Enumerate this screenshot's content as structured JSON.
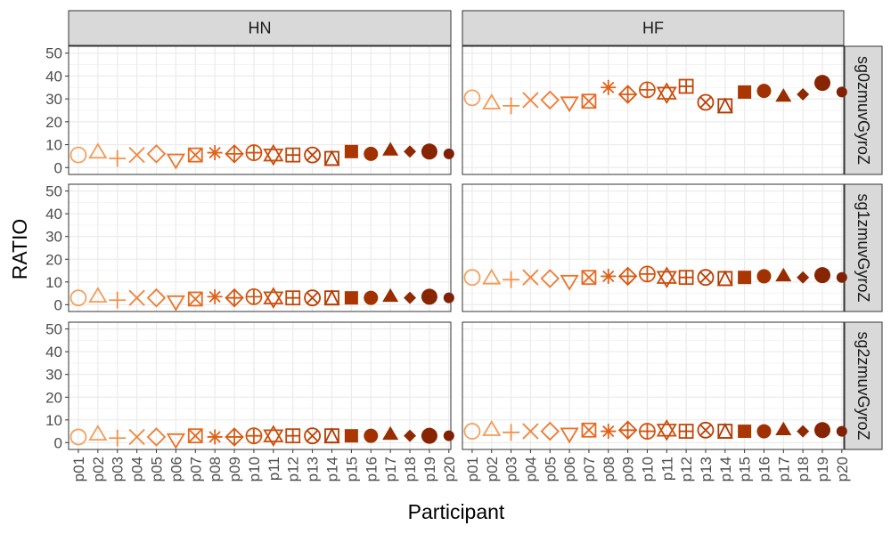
{
  "chart_data": {
    "type": "scatter",
    "xlabel": "Participant",
    "ylabel": "RATIO",
    "ylim": [
      -3,
      53
    ],
    "yticks": [
      0,
      10,
      20,
      30,
      40,
      50
    ],
    "grid": true,
    "participants": [
      "p01",
      "p02",
      "p03",
      "p04",
      "p05",
      "p06",
      "p07",
      "p08",
      "p09",
      "p10",
      "p11",
      "p12",
      "p13",
      "p14",
      "p15",
      "p16",
      "p17",
      "p18",
      "p19",
      "p20"
    ],
    "marker_shapes": [
      "circle-open",
      "triangle-open",
      "plus",
      "cross",
      "diamond-open",
      "triangle-down-open",
      "square-cross",
      "asterisk",
      "diamond-plus",
      "circle-plus",
      "star-of-david",
      "square-plus",
      "circle-cross",
      "square-triangle",
      "square-filled",
      "circle-filled",
      "triangle-filled",
      "diamond-filled",
      "circle-filled-large",
      "circle-filled-small"
    ],
    "colors": [
      "#f4a261",
      "#f39a56",
      "#f2904a",
      "#f0863e",
      "#ee7c33",
      "#ea7329",
      "#e66a20",
      "#e06118",
      "#d95a12",
      "#d2530e",
      "#ca4c0a",
      "#c24607",
      "#ba4005",
      "#b23b03",
      "#aa3602",
      "#a23101",
      "#992d01",
      "#902901",
      "#872501",
      "#7f2104"
    ],
    "columns": [
      "HN",
      "HF"
    ],
    "rows": [
      "sg0zmuvGyroZ",
      "sg1zmuvGyroZ",
      "sg2zmuvGyroZ"
    ],
    "panels": [
      {
        "column": "HN",
        "row": "sg0zmuvGyroZ",
        "values": [
          5.5,
          6.5,
          4,
          5.5,
          6,
          3.5,
          5.5,
          6.5,
          6,
          6.5,
          5.5,
          5.5,
          5.5,
          4,
          7,
          6,
          7.5,
          7,
          7,
          6
        ]
      },
      {
        "column": "HF",
        "row": "sg0zmuvGyroZ",
        "values": [
          30.5,
          28,
          27,
          29.5,
          29.5,
          28.5,
          29,
          35,
          32,
          34,
          32.5,
          35.5,
          28.5,
          27,
          33,
          33.5,
          31,
          32,
          37,
          33
        ]
      },
      {
        "column": "HN",
        "row": "sg1zmuvGyroZ",
        "values": [
          3,
          3.5,
          2,
          3,
          3,
          1.5,
          2.5,
          3.5,
          3,
          3.5,
          3,
          3,
          3,
          3,
          3,
          3,
          3.5,
          3,
          3.5,
          3
        ]
      },
      {
        "column": "HF",
        "row": "sg1zmuvGyroZ",
        "values": [
          12,
          11.5,
          11,
          12,
          11.5,
          10.5,
          12,
          12.5,
          12.5,
          13.5,
          12,
          12,
          12,
          11.5,
          12,
          12.5,
          12.5,
          12,
          13,
          12
        ]
      },
      {
        "column": "HN",
        "row": "sg2zmuvGyroZ",
        "values": [
          2.5,
          3.5,
          2,
          2.5,
          2.5,
          1.5,
          3,
          2.5,
          2.5,
          3,
          3,
          3,
          3,
          3,
          3,
          3,
          3.5,
          3,
          3,
          3
        ]
      },
      {
        "column": "HF",
        "row": "sg2zmuvGyroZ",
        "values": [
          5,
          5.5,
          4.5,
          5,
          5,
          4,
          5.5,
          5,
          5.5,
          5,
          5.5,
          5,
          5.5,
          5,
          5,
          5,
          5.5,
          5,
          5.5,
          5
        ]
      }
    ]
  }
}
